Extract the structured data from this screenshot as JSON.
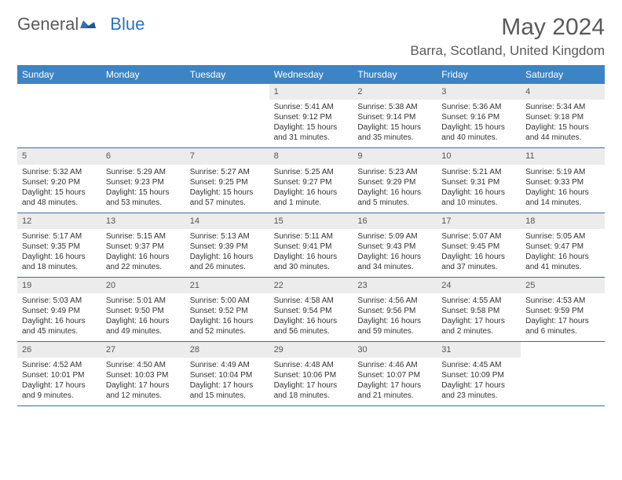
{
  "logo": {
    "part1": "General",
    "part2": "Blue"
  },
  "title": "May 2024",
  "location": "Barra, Scotland, United Kingdom",
  "colors": {
    "header_bg": "#3d84c4",
    "header_text": "#ffffff",
    "daynum_bg": "#ececec",
    "border": "#3d6c9e",
    "text": "#333333",
    "logo_gray": "#5a5a5a",
    "logo_blue": "#2d72b8"
  },
  "day_names": [
    "Sunday",
    "Monday",
    "Tuesday",
    "Wednesday",
    "Thursday",
    "Friday",
    "Saturday"
  ],
  "weeks": [
    [
      {
        "empty": true
      },
      {
        "empty": true
      },
      {
        "empty": true
      },
      {
        "day": "1",
        "sunrise": "Sunrise: 5:41 AM",
        "sunset": "Sunset: 9:12 PM",
        "daylight": "Daylight: 15 hours and 31 minutes."
      },
      {
        "day": "2",
        "sunrise": "Sunrise: 5:38 AM",
        "sunset": "Sunset: 9:14 PM",
        "daylight": "Daylight: 15 hours and 35 minutes."
      },
      {
        "day": "3",
        "sunrise": "Sunrise: 5:36 AM",
        "sunset": "Sunset: 9:16 PM",
        "daylight": "Daylight: 15 hours and 40 minutes."
      },
      {
        "day": "4",
        "sunrise": "Sunrise: 5:34 AM",
        "sunset": "Sunset: 9:18 PM",
        "daylight": "Daylight: 15 hours and 44 minutes."
      }
    ],
    [
      {
        "day": "5",
        "sunrise": "Sunrise: 5:32 AM",
        "sunset": "Sunset: 9:20 PM",
        "daylight": "Daylight: 15 hours and 48 minutes."
      },
      {
        "day": "6",
        "sunrise": "Sunrise: 5:29 AM",
        "sunset": "Sunset: 9:23 PM",
        "daylight": "Daylight: 15 hours and 53 minutes."
      },
      {
        "day": "7",
        "sunrise": "Sunrise: 5:27 AM",
        "sunset": "Sunset: 9:25 PM",
        "daylight": "Daylight: 15 hours and 57 minutes."
      },
      {
        "day": "8",
        "sunrise": "Sunrise: 5:25 AM",
        "sunset": "Sunset: 9:27 PM",
        "daylight": "Daylight: 16 hours and 1 minute."
      },
      {
        "day": "9",
        "sunrise": "Sunrise: 5:23 AM",
        "sunset": "Sunset: 9:29 PM",
        "daylight": "Daylight: 16 hours and 5 minutes."
      },
      {
        "day": "10",
        "sunrise": "Sunrise: 5:21 AM",
        "sunset": "Sunset: 9:31 PM",
        "daylight": "Daylight: 16 hours and 10 minutes."
      },
      {
        "day": "11",
        "sunrise": "Sunrise: 5:19 AM",
        "sunset": "Sunset: 9:33 PM",
        "daylight": "Daylight: 16 hours and 14 minutes."
      }
    ],
    [
      {
        "day": "12",
        "sunrise": "Sunrise: 5:17 AM",
        "sunset": "Sunset: 9:35 PM",
        "daylight": "Daylight: 16 hours and 18 minutes."
      },
      {
        "day": "13",
        "sunrise": "Sunrise: 5:15 AM",
        "sunset": "Sunset: 9:37 PM",
        "daylight": "Daylight: 16 hours and 22 minutes."
      },
      {
        "day": "14",
        "sunrise": "Sunrise: 5:13 AM",
        "sunset": "Sunset: 9:39 PM",
        "daylight": "Daylight: 16 hours and 26 minutes."
      },
      {
        "day": "15",
        "sunrise": "Sunrise: 5:11 AM",
        "sunset": "Sunset: 9:41 PM",
        "daylight": "Daylight: 16 hours and 30 minutes."
      },
      {
        "day": "16",
        "sunrise": "Sunrise: 5:09 AM",
        "sunset": "Sunset: 9:43 PM",
        "daylight": "Daylight: 16 hours and 34 minutes."
      },
      {
        "day": "17",
        "sunrise": "Sunrise: 5:07 AM",
        "sunset": "Sunset: 9:45 PM",
        "daylight": "Daylight: 16 hours and 37 minutes."
      },
      {
        "day": "18",
        "sunrise": "Sunrise: 5:05 AM",
        "sunset": "Sunset: 9:47 PM",
        "daylight": "Daylight: 16 hours and 41 minutes."
      }
    ],
    [
      {
        "day": "19",
        "sunrise": "Sunrise: 5:03 AM",
        "sunset": "Sunset: 9:49 PM",
        "daylight": "Daylight: 16 hours and 45 minutes."
      },
      {
        "day": "20",
        "sunrise": "Sunrise: 5:01 AM",
        "sunset": "Sunset: 9:50 PM",
        "daylight": "Daylight: 16 hours and 49 minutes."
      },
      {
        "day": "21",
        "sunrise": "Sunrise: 5:00 AM",
        "sunset": "Sunset: 9:52 PM",
        "daylight": "Daylight: 16 hours and 52 minutes."
      },
      {
        "day": "22",
        "sunrise": "Sunrise: 4:58 AM",
        "sunset": "Sunset: 9:54 PM",
        "daylight": "Daylight: 16 hours and 56 minutes."
      },
      {
        "day": "23",
        "sunrise": "Sunrise: 4:56 AM",
        "sunset": "Sunset: 9:56 PM",
        "daylight": "Daylight: 16 hours and 59 minutes."
      },
      {
        "day": "24",
        "sunrise": "Sunrise: 4:55 AM",
        "sunset": "Sunset: 9:58 PM",
        "daylight": "Daylight: 17 hours and 2 minutes."
      },
      {
        "day": "25",
        "sunrise": "Sunrise: 4:53 AM",
        "sunset": "Sunset: 9:59 PM",
        "daylight": "Daylight: 17 hours and 6 minutes."
      }
    ],
    [
      {
        "day": "26",
        "sunrise": "Sunrise: 4:52 AM",
        "sunset": "Sunset: 10:01 PM",
        "daylight": "Daylight: 17 hours and 9 minutes."
      },
      {
        "day": "27",
        "sunrise": "Sunrise: 4:50 AM",
        "sunset": "Sunset: 10:03 PM",
        "daylight": "Daylight: 17 hours and 12 minutes."
      },
      {
        "day": "28",
        "sunrise": "Sunrise: 4:49 AM",
        "sunset": "Sunset: 10:04 PM",
        "daylight": "Daylight: 17 hours and 15 minutes."
      },
      {
        "day": "29",
        "sunrise": "Sunrise: 4:48 AM",
        "sunset": "Sunset: 10:06 PM",
        "daylight": "Daylight: 17 hours and 18 minutes."
      },
      {
        "day": "30",
        "sunrise": "Sunrise: 4:46 AM",
        "sunset": "Sunset: 10:07 PM",
        "daylight": "Daylight: 17 hours and 21 minutes."
      },
      {
        "day": "31",
        "sunrise": "Sunrise: 4:45 AM",
        "sunset": "Sunset: 10:09 PM",
        "daylight": "Daylight: 17 hours and 23 minutes."
      },
      {
        "empty": true
      }
    ]
  ]
}
